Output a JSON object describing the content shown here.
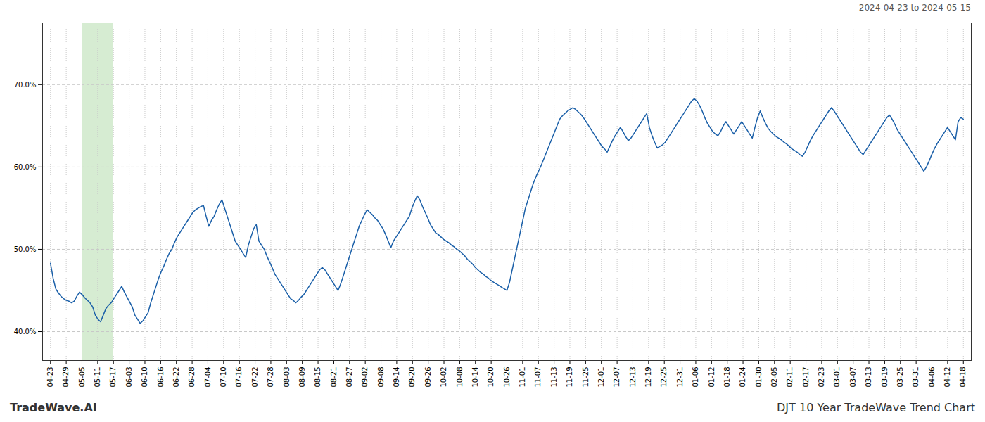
{
  "chart_data": {
    "type": "line",
    "annotations": [
      "2024-04-23 to 2024-05-15",
      "TradeWave.AI",
      "DJT 10 Year TradeWave Trend Chart"
    ],
    "color": "#1a5fa8",
    "grid": true,
    "shade": {
      "from": "05-05",
      "to": "05-17",
      "color": "#d6ecd2"
    },
    "xlim": [
      -3,
      349
    ],
    "xticks": [
      {
        "value": 0,
        "label": "04-23"
      },
      {
        "value": 5.965517,
        "label": "04-29"
      },
      {
        "value": 11.931034,
        "label": "05-05"
      },
      {
        "value": 17.896552,
        "label": "05-11"
      },
      {
        "value": 23.862069,
        "label": "05-17"
      },
      {
        "value": 29.827586,
        "label": "06-03"
      },
      {
        "value": 35.793103,
        "label": "06-10"
      },
      {
        "value": 41.758621,
        "label": "06-16"
      },
      {
        "value": 47.724138,
        "label": "06-22"
      },
      {
        "value": 53.689655,
        "label": "06-28"
      },
      {
        "value": 59.655172,
        "label": "07-04"
      },
      {
        "value": 65.62069,
        "label": "07-10"
      },
      {
        "value": 71.586207,
        "label": "07-16"
      },
      {
        "value": 77.551724,
        "label": "07-22"
      },
      {
        "value": 83.517241,
        "label": "07-28"
      },
      {
        "value": 89.482759,
        "label": "08-03"
      },
      {
        "value": 95.448276,
        "label": "08-09"
      },
      {
        "value": 101.413793,
        "label": "08-15"
      },
      {
        "value": 107.37931,
        "label": "08-21"
      },
      {
        "value": 113.344828,
        "label": "08-27"
      },
      {
        "value": 119.310345,
        "label": "09-02"
      },
      {
        "value": 125.275862,
        "label": "09-08"
      },
      {
        "value": 131.241379,
        "label": "09-14"
      },
      {
        "value": 137.206897,
        "label": "09-20"
      },
      {
        "value": 143.172414,
        "label": "09-26"
      },
      {
        "value": 149.137931,
        "label": "10-02"
      },
      {
        "value": 155.103448,
        "label": "10-08"
      },
      {
        "value": 161.068966,
        "label": "10-14"
      },
      {
        "value": 167.034483,
        "label": "10-20"
      },
      {
        "value": 173,
        "label": "10-26"
      },
      {
        "value": 178.965517,
        "label": "11-01"
      },
      {
        "value": 184.931034,
        "label": "11-07"
      },
      {
        "value": 190.896552,
        "label": "11-13"
      },
      {
        "value": 196.862069,
        "label": "11-19"
      },
      {
        "value": 202.827586,
        "label": "11-25"
      },
      {
        "value": 208.793103,
        "label": "12-01"
      },
      {
        "value": 214.758621,
        "label": "12-07"
      },
      {
        "value": 220.724138,
        "label": "12-13"
      },
      {
        "value": 226.689655,
        "label": "12-19"
      },
      {
        "value": 232.655172,
        "label": "12-25"
      },
      {
        "value": 238.62069,
        "label": "12-31"
      },
      {
        "value": 244.586207,
        "label": "01-06"
      },
      {
        "value": 250.551724,
        "label": "01-12"
      },
      {
        "value": 256.517241,
        "label": "01-18"
      },
      {
        "value": 262.482759,
        "label": "01-24"
      },
      {
        "value": 268.448276,
        "label": "01-30"
      },
      {
        "value": 274.413793,
        "label": "02-05"
      },
      {
        "value": 280.37931,
        "label": "02-11"
      },
      {
        "value": 286.344828,
        "label": "02-17"
      },
      {
        "value": 292.310345,
        "label": "02-23"
      },
      {
        "value": 298.275862,
        "label": "03-01"
      },
      {
        "value": 304.241379,
        "label": "03-07"
      },
      {
        "value": 310.206897,
        "label": "03-13"
      },
      {
        "value": 316.172414,
        "label": "03-19"
      },
      {
        "value": 322.137931,
        "label": "03-25"
      },
      {
        "value": 328.103448,
        "label": "03-31"
      },
      {
        "value": 334.068966,
        "label": "04-06"
      },
      {
        "value": 340.034483,
        "label": "04-12"
      },
      {
        "value": 346,
        "label": "04-18"
      }
    ],
    "ylim": [
      0.365,
      0.775
    ],
    "yticks": [
      {
        "value": 0.4,
        "label": "40.0%"
      },
      {
        "value": 0.5,
        "label": "50.0%"
      },
      {
        "value": 0.6,
        "label": "60.0%"
      },
      {
        "value": 0.7,
        "label": "70.0%"
      }
    ],
    "values": [
      0.483,
      0.465,
      0.452,
      0.447,
      0.443,
      0.44,
      0.438,
      0.437,
      0.435,
      0.437,
      0.443,
      0.448,
      0.445,
      0.441,
      0.438,
      0.435,
      0.43,
      0.42,
      0.415,
      0.412,
      0.42,
      0.428,
      0.432,
      0.435,
      0.44,
      0.445,
      0.45,
      0.455,
      0.448,
      0.442,
      0.436,
      0.43,
      0.42,
      0.415,
      0.41,
      0.413,
      0.418,
      0.423,
      0.435,
      0.445,
      0.455,
      0.465,
      0.473,
      0.48,
      0.488,
      0.495,
      0.5,
      0.508,
      0.515,
      0.52,
      0.525,
      0.53,
      0.535,
      0.54,
      0.545,
      0.548,
      0.55,
      0.552,
      0.553,
      0.54,
      0.528,
      0.535,
      0.54,
      0.548,
      0.555,
      0.56,
      0.55,
      0.54,
      0.53,
      0.52,
      0.51,
      0.505,
      0.5,
      0.495,
      0.49,
      0.505,
      0.515,
      0.525,
      0.53,
      0.51,
      0.505,
      0.5,
      0.492,
      0.485,
      0.478,
      0.47,
      0.465,
      0.46,
      0.455,
      0.45,
      0.445,
      0.44,
      0.438,
      0.435,
      0.438,
      0.442,
      0.445,
      0.45,
      0.455,
      0.46,
      0.465,
      0.47,
      0.475,
      0.478,
      0.475,
      0.47,
      0.465,
      0.46,
      0.455,
      0.45,
      0.458,
      0.468,
      0.478,
      0.488,
      0.498,
      0.508,
      0.518,
      0.528,
      0.535,
      0.542,
      0.548,
      0.545,
      0.542,
      0.538,
      0.535,
      0.53,
      0.525,
      0.518,
      0.51,
      0.502,
      0.51,
      0.515,
      0.52,
      0.525,
      0.53,
      0.535,
      0.54,
      0.55,
      0.558,
      0.565,
      0.56,
      0.552,
      0.545,
      0.538,
      0.53,
      0.525,
      0.52,
      0.518,
      0.515,
      0.512,
      0.51,
      0.508,
      0.505,
      0.503,
      0.5,
      0.498,
      0.495,
      0.492,
      0.488,
      0.485,
      0.482,
      0.478,
      0.475,
      0.472,
      0.47,
      0.467,
      0.465,
      0.462,
      0.46,
      0.458,
      0.456,
      0.454,
      0.452,
      0.45,
      0.46,
      0.475,
      0.49,
      0.505,
      0.52,
      0.535,
      0.55,
      0.56,
      0.57,
      0.58,
      0.588,
      0.595,
      0.602,
      0.61,
      0.618,
      0.626,
      0.634,
      0.642,
      0.65,
      0.658,
      0.662,
      0.665,
      0.668,
      0.67,
      0.672,
      0.67,
      0.667,
      0.664,
      0.66,
      0.655,
      0.65,
      0.645,
      0.64,
      0.635,
      0.63,
      0.625,
      0.622,
      0.618,
      0.625,
      0.632,
      0.638,
      0.643,
      0.648,
      0.643,
      0.637,
      0.632,
      0.635,
      0.64,
      0.645,
      0.65,
      0.655,
      0.66,
      0.665,
      0.648,
      0.638,
      0.63,
      0.623,
      0.625,
      0.627,
      0.63,
      0.635,
      0.64,
      0.645,
      0.65,
      0.655,
      0.66,
      0.665,
      0.67,
      0.675,
      0.68,
      0.683,
      0.68,
      0.675,
      0.668,
      0.66,
      0.653,
      0.648,
      0.643,
      0.64,
      0.638,
      0.643,
      0.65,
      0.655,
      0.65,
      0.645,
      0.64,
      0.645,
      0.65,
      0.655,
      0.65,
      0.645,
      0.64,
      0.635,
      0.648,
      0.66,
      0.668,
      0.66,
      0.653,
      0.647,
      0.643,
      0.64,
      0.637,
      0.635,
      0.633,
      0.63,
      0.628,
      0.625,
      0.622,
      0.62,
      0.618,
      0.615,
      0.613,
      0.618,
      0.625,
      0.632,
      0.638,
      0.643,
      0.648,
      0.653,
      0.658,
      0.663,
      0.668,
      0.672,
      0.668,
      0.663,
      0.658,
      0.653,
      0.648,
      0.643,
      0.638,
      0.633,
      0.628,
      0.623,
      0.618,
      0.615,
      0.62,
      0.625,
      0.63,
      0.635,
      0.64,
      0.645,
      0.65,
      0.655,
      0.66,
      0.663,
      0.658,
      0.652,
      0.645,
      0.64,
      0.635,
      0.63,
      0.625,
      0.62,
      0.615,
      0.61,
      0.605,
      0.6,
      0.595,
      0.6,
      0.607,
      0.615,
      0.622,
      0.628,
      0.633,
      0.638,
      0.643,
      0.648,
      0.643,
      0.638,
      0.633,
      0.655,
      0.66,
      0.658
    ]
  }
}
